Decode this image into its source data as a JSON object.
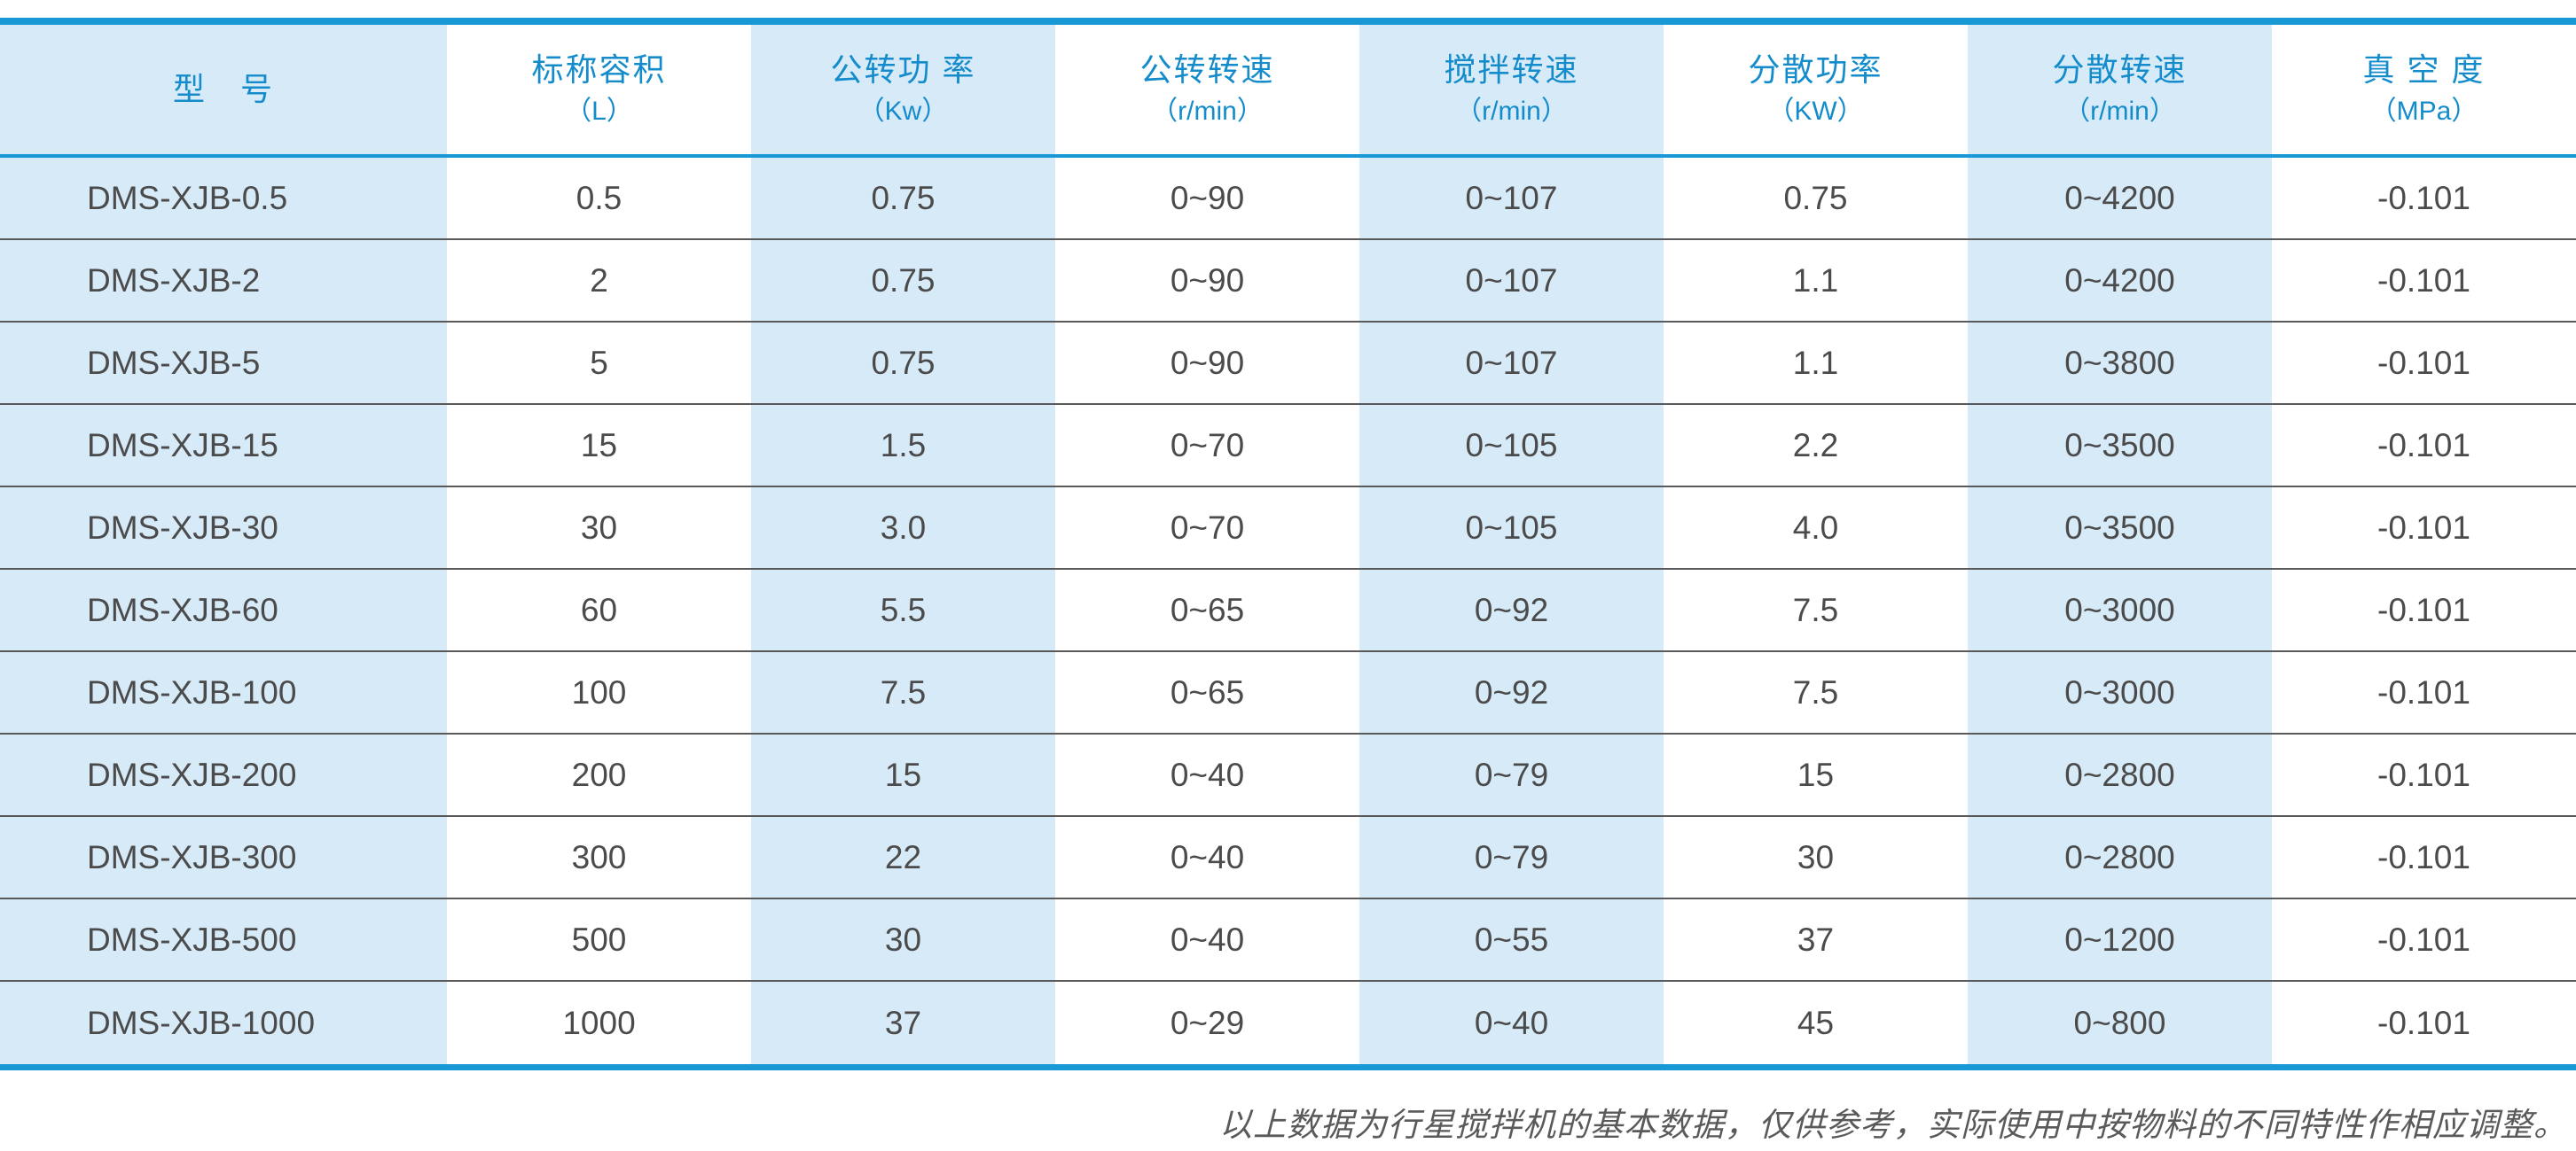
{
  "table": {
    "columns": [
      {
        "label": "型　号",
        "unit": ""
      },
      {
        "label": "标称容积",
        "unit": "（L）"
      },
      {
        "label": "公转功 率",
        "unit": "（Kw）"
      },
      {
        "label": "公转转速",
        "unit": "（r/min）"
      },
      {
        "label": "搅拌转速",
        "unit": "（r/min）"
      },
      {
        "label": "分散功率",
        "unit": "（KW）"
      },
      {
        "label": "分散转速",
        "unit": "（r/min）"
      },
      {
        "label": "真 空 度",
        "unit": "（MPa）"
      }
    ],
    "rows": [
      [
        "DMS-XJB-0.5",
        "0.5",
        "0.75",
        "0~90",
        "0~107",
        "0.75",
        "0~4200",
        "-0.101"
      ],
      [
        "DMS-XJB-2",
        "2",
        "0.75",
        "0~90",
        "0~107",
        "1.1",
        "0~4200",
        "-0.101"
      ],
      [
        "DMS-XJB-5",
        "5",
        "0.75",
        "0~90",
        "0~107",
        "1.1",
        "0~3800",
        "-0.101"
      ],
      [
        "DMS-XJB-15",
        "15",
        "1.5",
        "0~70",
        "0~105",
        "2.2",
        "0~3500",
        "-0.101"
      ],
      [
        "DMS-XJB-30",
        "30",
        "3.0",
        "0~70",
        "0~105",
        "4.0",
        "0~3500",
        "-0.101"
      ],
      [
        "DMS-XJB-60",
        "60",
        "5.5",
        "0~65",
        "0~92",
        "7.5",
        "0~3000",
        "-0.101"
      ],
      [
        "DMS-XJB-100",
        "100",
        "7.5",
        "0~65",
        "0~92",
        "7.5",
        "0~3000",
        "-0.101"
      ],
      [
        "DMS-XJB-200",
        "200",
        "15",
        "0~40",
        "0~79",
        "15",
        "0~2800",
        "-0.101"
      ],
      [
        "DMS-XJB-300",
        "300",
        "22",
        "0~40",
        "0~79",
        "30",
        "0~2800",
        "-0.101"
      ],
      [
        "DMS-XJB-500",
        "500",
        "30",
        "0~40",
        "0~55",
        "37",
        "0~1200",
        "-0.101"
      ],
      [
        "DMS-XJB-1000",
        "1000",
        "37",
        "0~29",
        "0~40",
        "45",
        "0~800",
        "-0.101"
      ]
    ]
  },
  "footnote": "以上数据为行星搅拌机的基本数据，仅供参考，实际使用中按物料的不同特性作相应调整。",
  "colors": {
    "accent_blue": "#1898d5",
    "header_text_blue": "#148ccb",
    "stripe_light_blue": "#d7eaf8",
    "data_text": "#4b4b4b",
    "row_separator": "#595959",
    "footnote_text": "#5a5a5a"
  }
}
